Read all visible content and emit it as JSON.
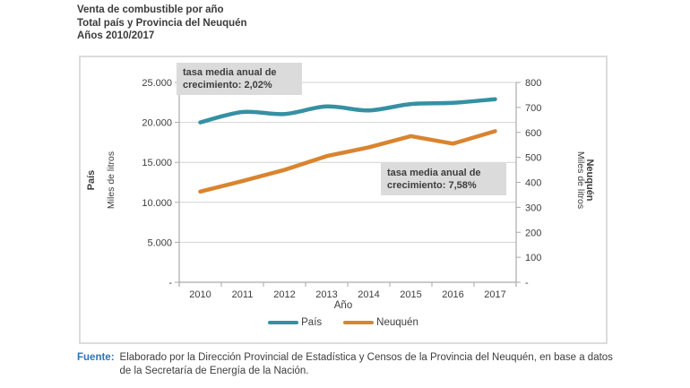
{
  "title": {
    "line1": "Venta de combustible por año",
    "line2": "Total país y Provincia del Neuquén",
    "line3": "Años 2010/2017"
  },
  "chart_data": {
    "type": "line",
    "x": [
      "2010",
      "2011",
      "2012",
      "2013",
      "2014",
      "2015",
      "2016",
      "2017"
    ],
    "series": [
      {
        "name": "País",
        "axis": "left",
        "color": "#3690a3",
        "smooth": true,
        "values": [
          20000,
          21300,
          21050,
          22000,
          21500,
          22300,
          22450,
          22900
        ]
      },
      {
        "name": "Neuquén",
        "axis": "right",
        "color": "#d9842f",
        "smooth": false,
        "values": [
          363,
          405,
          450,
          505,
          540,
          585,
          555,
          605
        ]
      }
    ],
    "x_axis": {
      "title": "Año"
    },
    "left_axis": {
      "title_primary": "País",
      "title_units": "Miles de litros",
      "min": 0,
      "max": 25000,
      "tick_step": 5000,
      "tick_labels": [
        "-",
        "5.000",
        "10.000",
        "15.000",
        "20.000",
        "25.000"
      ]
    },
    "right_axis": {
      "title_primary": "Neuquén",
      "title_units": "Miles de litros",
      "min": 0,
      "max": 800,
      "tick_step": 100,
      "tick_labels": [
        "-",
        "100",
        "200",
        "300",
        "400",
        "500",
        "600",
        "700",
        "800"
      ]
    },
    "annotations": [
      {
        "text": "tasa media anual de crecimiento: 2,02%"
      },
      {
        "text": "tasa media anual de crecimiento: 7,58%"
      }
    ],
    "legend": [
      "País",
      "Neuquén"
    ],
    "grid": "horizontal",
    "legend_position": "bottom"
  },
  "colors": {
    "pais_line": "#3690a3",
    "neuquen_line": "#d9842f",
    "annotation_bg": "#dbdbdb",
    "gridline": "#d2d2d2",
    "axis": "#aaaaaa",
    "text": "#3d3d3d",
    "fuente_label": "#2e74b5",
    "chart_border": "#dcdcdc"
  },
  "footer": {
    "label": "Fuente:",
    "text": "Elaborado por la Dirección Provincial de Estadística y Censos de la Provincia del Neuquén, en base a datos de la Secretaría de Energía de la Nación."
  }
}
